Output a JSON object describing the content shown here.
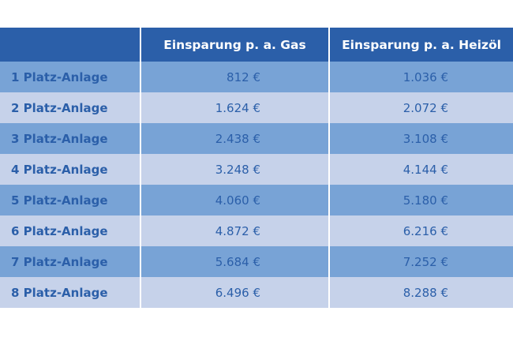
{
  "table": {
    "header": [
      "Einsparung p. a. Gas",
      "Einsparung p. a. Heizöl"
    ],
    "rows": [
      [
        "1 Platz-Anlage",
        "812 €",
        "1.036 €"
      ],
      [
        "2 Platz-Anlage",
        "1.624 €",
        "2.072 €"
      ],
      [
        "3 Platz-Anlage",
        "2.438 €",
        "3.108 €"
      ],
      [
        "4 Platz-Anlage",
        "3.248 €",
        "4.144 €"
      ],
      [
        "5 Platz-Anlage",
        "4.060 €",
        "5.180 €"
      ],
      [
        "6 Platz-Anlage",
        "4.872 €",
        "6.216 €"
      ],
      [
        "7 Platz-Anlage",
        "5.684 €",
        "7.252 €"
      ],
      [
        "8 Platz-Anlage",
        "6.496 €",
        "8.288 €"
      ]
    ]
  }
}
